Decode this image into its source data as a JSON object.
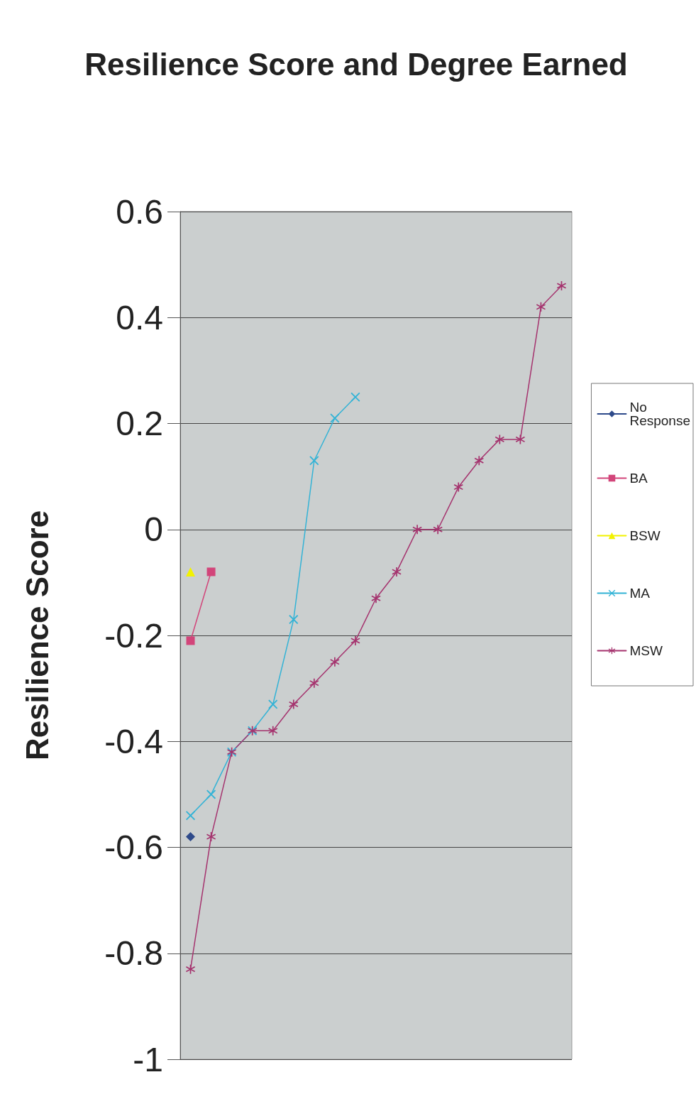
{
  "chart_data": {
    "type": "line",
    "title": "Resilience Score and Degree Earned",
    "ylabel": "Resilience Score",
    "categories": [
      null,
      null,
      null,
      null,
      null,
      null,
      null,
      null,
      null,
      null,
      null,
      null,
      null,
      null,
      null,
      null,
      null,
      null,
      null
    ],
    "series": [
      {
        "name": "No Response",
        "color": "#2e4a8a",
        "marker": "diamond",
        "values": [
          -0.58,
          null,
          null,
          null,
          null,
          null,
          null,
          null,
          null,
          null,
          null,
          null,
          null,
          null,
          null,
          null,
          null,
          null,
          null
        ]
      },
      {
        "name": "BA",
        "color": "#d2457a",
        "marker": "square",
        "values": [
          -0.21,
          -0.08,
          null,
          null,
          null,
          null,
          null,
          null,
          null,
          null,
          null,
          null,
          null,
          null,
          null,
          null,
          null,
          null,
          null
        ]
      },
      {
        "name": "BSW",
        "color": "#f2f200",
        "marker": "triangle",
        "values": [
          -0.08,
          null,
          null,
          null,
          null,
          null,
          null,
          null,
          null,
          null,
          null,
          null,
          null,
          null,
          null,
          null,
          null,
          null,
          null
        ]
      },
      {
        "name": "MA",
        "color": "#33b3d6",
        "marker": "cross",
        "values": [
          -0.54,
          -0.5,
          -0.42,
          -0.38,
          -0.33,
          -0.17,
          0.13,
          0.21,
          0.25,
          null,
          null,
          null,
          null,
          null,
          null,
          null,
          null,
          null,
          null
        ]
      },
      {
        "name": "MSW",
        "color": "#a5336e",
        "marker": "star",
        "values": [
          -0.83,
          -0.58,
          -0.42,
          -0.38,
          -0.38,
          -0.33,
          -0.29,
          -0.25,
          -0.21,
          -0.13,
          -0.08,
          0,
          0,
          0.08,
          0.13,
          0.17,
          0.17,
          0.42,
          0.46
        ]
      }
    ],
    "ylim": [
      -1,
      0.6
    ],
    "yticks": [
      -1,
      -0.8,
      -0.6,
      -0.4,
      -0.2,
      0,
      0.2,
      0.4,
      0.6
    ],
    "grid": "y",
    "legend": "right"
  }
}
